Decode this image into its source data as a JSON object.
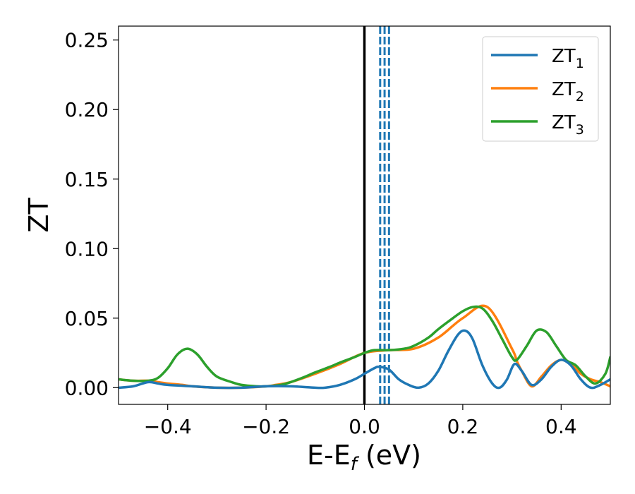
{
  "chart_data": {
    "type": "line",
    "title": "",
    "xlabel": {
      "main": "E-E",
      "sub": "f",
      "suffix": " (eV)"
    },
    "ylabel": "ZT",
    "xlim": [
      -0.5,
      0.5
    ],
    "ylim": [
      -0.012,
      0.26
    ],
    "x_ticks": [
      -0.4,
      -0.2,
      0.0,
      0.2,
      0.4
    ],
    "x_tick_labels": [
      "−0.4",
      "−0.2",
      "0.0",
      "0.2",
      "0.4"
    ],
    "y_ticks": [
      0.0,
      0.05,
      0.1,
      0.15,
      0.2,
      0.25
    ],
    "y_tick_labels": [
      "0.00",
      "0.05",
      "0.10",
      "0.15",
      "0.20",
      "0.25"
    ],
    "grid": false,
    "legend_position": "top-right",
    "vertical_lines": [
      {
        "x": 0.0,
        "color": "#000000",
        "style": "solid"
      },
      {
        "x": 0.032,
        "color": "#1f77b4",
        "style": "dashed"
      },
      {
        "x": 0.041,
        "color": "#1f77b4",
        "style": "dashed"
      },
      {
        "x": 0.05,
        "color": "#1f77b4",
        "style": "dashed"
      }
    ],
    "series": [
      {
        "name": "ZT",
        "sub": "1",
        "color": "#1f77b4",
        "x": [
          -0.5,
          -0.47,
          -0.44,
          -0.42,
          -0.4,
          -0.35,
          -0.3,
          -0.25,
          -0.2,
          -0.15,
          -0.1,
          -0.08,
          -0.05,
          -0.02,
          0.0,
          0.02,
          0.03,
          0.05,
          0.07,
          0.09,
          0.11,
          0.13,
          0.15,
          0.17,
          0.19,
          0.205,
          0.22,
          0.24,
          0.26,
          0.275,
          0.29,
          0.305,
          0.32,
          0.34,
          0.36,
          0.38,
          0.4,
          0.42,
          0.44,
          0.46,
          0.48,
          0.5
        ],
        "y": [
          0.0,
          0.001,
          0.004,
          0.003,
          0.002,
          0.001,
          0.0,
          0.0,
          0.001,
          0.001,
          0.0,
          0.0,
          0.002,
          0.006,
          0.01,
          0.014,
          0.015,
          0.013,
          0.006,
          0.002,
          0.0,
          0.003,
          0.012,
          0.026,
          0.038,
          0.041,
          0.035,
          0.016,
          0.003,
          0.0,
          0.006,
          0.017,
          0.012,
          0.002,
          0.006,
          0.015,
          0.02,
          0.016,
          0.006,
          0.0,
          0.002,
          0.006
        ]
      },
      {
        "name": "ZT",
        "sub": "2",
        "color": "#ff7f0e",
        "x": [
          -0.5,
          -0.47,
          -0.44,
          -0.42,
          -0.4,
          -0.37,
          -0.35,
          -0.3,
          -0.25,
          -0.2,
          -0.18,
          -0.15,
          -0.1,
          -0.05,
          0.0,
          0.05,
          0.1,
          0.15,
          0.2,
          0.25,
          0.3,
          0.31,
          0.32,
          0.34,
          0.36,
          0.38,
          0.4,
          0.42,
          0.44,
          0.46,
          0.48,
          0.5
        ],
        "y": [
          0.006,
          0.005,
          0.005,
          0.004,
          0.003,
          0.002,
          0.001,
          0.0,
          0.0,
          0.001,
          0.002,
          0.004,
          0.01,
          0.017,
          0.025,
          0.027,
          0.028,
          0.036,
          0.05,
          0.058,
          0.028,
          0.019,
          0.012,
          0.001,
          0.008,
          0.016,
          0.02,
          0.017,
          0.01,
          0.006,
          0.004,
          0.001
        ]
      },
      {
        "name": "ZT",
        "sub": "3",
        "color": "#2ca02c",
        "x": [
          -0.5,
          -0.47,
          -0.44,
          -0.42,
          -0.4,
          -0.38,
          -0.36,
          -0.34,
          -0.32,
          -0.3,
          -0.27,
          -0.25,
          -0.22,
          -0.2,
          -0.17,
          -0.15,
          -0.12,
          -0.1,
          -0.07,
          -0.05,
          -0.02,
          0.0,
          0.02,
          0.05,
          0.08,
          0.1,
          0.13,
          0.15,
          0.18,
          0.2,
          0.22,
          0.24,
          0.26,
          0.28,
          0.3,
          0.31,
          0.33,
          0.35,
          0.37,
          0.39,
          0.41,
          0.43,
          0.45,
          0.47,
          0.49,
          0.5
        ],
        "y": [
          0.006,
          0.005,
          0.005,
          0.007,
          0.014,
          0.024,
          0.028,
          0.024,
          0.015,
          0.008,
          0.004,
          0.002,
          0.001,
          0.001,
          0.002,
          0.004,
          0.008,
          0.011,
          0.015,
          0.018,
          0.022,
          0.025,
          0.027,
          0.027,
          0.028,
          0.03,
          0.036,
          0.042,
          0.05,
          0.055,
          0.058,
          0.057,
          0.048,
          0.035,
          0.022,
          0.02,
          0.03,
          0.041,
          0.04,
          0.03,
          0.02,
          0.016,
          0.008,
          0.003,
          0.01,
          0.022
        ]
      }
    ]
  }
}
